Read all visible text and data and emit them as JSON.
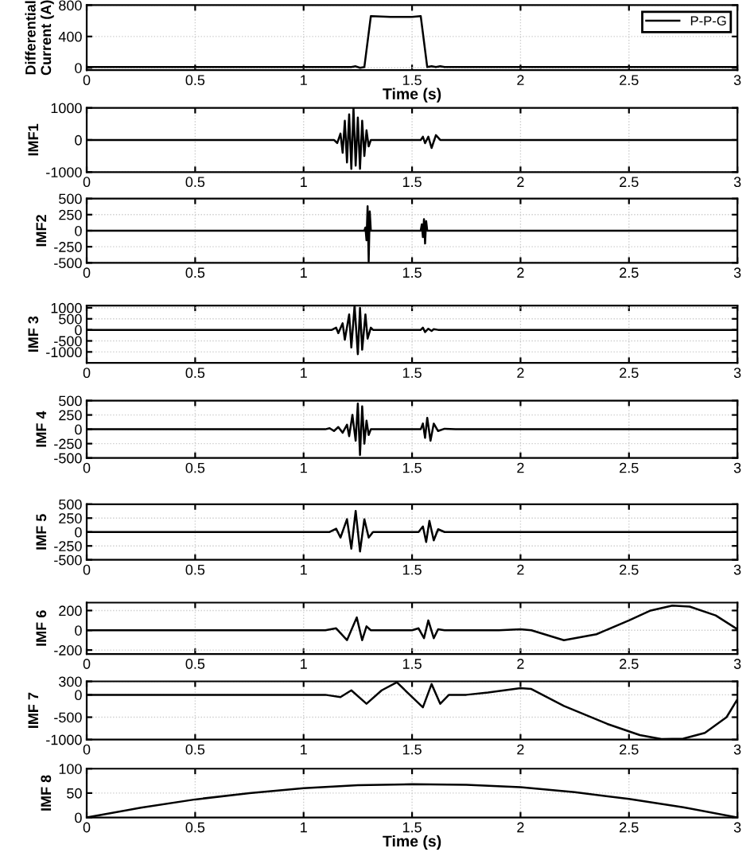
{
  "chart_data": [
    {
      "type": "line",
      "ylabel": "Differential\nCurrent (A)",
      "xlabel": "Time (s)",
      "legend": "top right",
      "grid": true,
      "xlim": [
        0,
        3
      ],
      "ylim": [
        -30,
        800
      ],
      "xticks": [
        0,
        0.5,
        1,
        1.5,
        2,
        2.5,
        3
      ],
      "yticks": [
        0,
        400,
        800
      ],
      "x": [
        0,
        1.22,
        1.24,
        1.26,
        1.28,
        1.31,
        1.4,
        1.5,
        1.54,
        1.57,
        1.59,
        1.61,
        1.63,
        1.65,
        3
      ],
      "series": [
        {
          "name": "P-P-G",
          "color": "#000000",
          "values": [
            10,
            10,
            20,
            0,
            10,
            660,
            650,
            650,
            660,
            10,
            20,
            10,
            20,
            10,
            10
          ]
        }
      ]
    },
    {
      "type": "line",
      "ylabel": "IMF1",
      "grid": true,
      "xlim": [
        0,
        3
      ],
      "ylim": [
        -1000,
        1000
      ],
      "xticks": [
        0,
        0.5,
        1,
        1.5,
        2,
        2.5,
        3
      ],
      "yticks": [
        -1000,
        0,
        1000
      ],
      "x": [
        0,
        1.14,
        1.155,
        1.17,
        1.18,
        1.19,
        1.2,
        1.21,
        1.22,
        1.23,
        1.24,
        1.25,
        1.26,
        1.27,
        1.28,
        1.29,
        1.3,
        1.31,
        1.54,
        1.55,
        1.56,
        1.575,
        1.59,
        1.61,
        1.63,
        3
      ],
      "series": [
        {
          "color": "#000000",
          "values": [
            0,
            0,
            -100,
            200,
            -400,
            600,
            -700,
            800,
            -900,
            1000,
            -800,
            700,
            -900,
            600,
            -500,
            300,
            -200,
            0,
            0,
            100,
            -100,
            100,
            -250,
            150,
            0,
            0
          ]
        }
      ]
    },
    {
      "type": "line",
      "ylabel": "IMF2",
      "grid": true,
      "xlim": [
        0,
        3
      ],
      "ylim": [
        -500,
        500
      ],
      "xticks": [
        0,
        0.5,
        1,
        1.5,
        2,
        2.5,
        3
      ],
      "yticks": [
        -500,
        -250,
        0,
        250,
        500
      ],
      "x": [
        0,
        1.28,
        1.285,
        1.29,
        1.295,
        1.3,
        1.305,
        1.31,
        1.54,
        1.545,
        1.55,
        1.555,
        1.56,
        1.565,
        1.57,
        3
      ],
      "series": [
        {
          "color": "#000000",
          "values": [
            0,
            0,
            50,
            -150,
            380,
            -480,
            300,
            0,
            0,
            100,
            -100,
            180,
            -200,
            150,
            0,
            0
          ]
        }
      ]
    },
    {
      "type": "line",
      "ylabel": "IMF 3",
      "grid": true,
      "xlim": [
        0,
        3
      ],
      "ylim": [
        -1500,
        1100
      ],
      "xticks": [
        0,
        0.5,
        1,
        1.5,
        2,
        2.5,
        3
      ],
      "yticks": [
        -1000,
        -500,
        0,
        500,
        1000
      ],
      "x": [
        0,
        1.13,
        1.15,
        1.16,
        1.18,
        1.19,
        1.21,
        1.22,
        1.235,
        1.25,
        1.26,
        1.27,
        1.285,
        1.295,
        1.31,
        1.32,
        1.54,
        1.55,
        1.56,
        1.575,
        1.59,
        1.6,
        1.62,
        3
      ],
      "series": [
        {
          "color": "#000000",
          "values": [
            0,
            0,
            100,
            -150,
            300,
            -450,
            700,
            -800,
            1100,
            -1100,
            1000,
            -900,
            700,
            -400,
            100,
            0,
            0,
            100,
            -100,
            50,
            -50,
            30,
            0,
            0
          ]
        }
      ]
    },
    {
      "type": "line",
      "ylabel": "IMF 4",
      "grid": true,
      "xlim": [
        0,
        3
      ],
      "ylim": [
        -500,
        500
      ],
      "xticks": [
        0,
        0.5,
        1,
        1.5,
        2,
        2.5,
        3
      ],
      "yticks": [
        -500,
        -250,
        0,
        250,
        500
      ],
      "x": [
        0,
        1.1,
        1.12,
        1.14,
        1.16,
        1.18,
        1.2,
        1.21,
        1.225,
        1.24,
        1.25,
        1.26,
        1.27,
        1.28,
        1.29,
        1.3,
        1.31,
        1.54,
        1.55,
        1.56,
        1.57,
        1.585,
        1.6,
        1.62,
        1.65,
        1.7,
        3
      ],
      "series": [
        {
          "color": "#000000",
          "values": [
            0,
            0,
            20,
            -30,
            40,
            -60,
            80,
            -120,
            250,
            -200,
            450,
            -450,
            400,
            -250,
            150,
            -100,
            0,
            0,
            100,
            -150,
            200,
            -200,
            100,
            -30,
            10,
            0,
            0
          ]
        }
      ]
    },
    {
      "type": "line",
      "ylabel": "IMF 5",
      "grid": true,
      "xlim": [
        0,
        3
      ],
      "ylim": [
        -500,
        500
      ],
      "xticks": [
        0,
        0.5,
        1,
        1.5,
        2,
        2.5,
        3
      ],
      "yticks": [
        -500,
        -250,
        0,
        250,
        500
      ],
      "x": [
        0,
        1.12,
        1.15,
        1.17,
        1.2,
        1.22,
        1.24,
        1.26,
        1.28,
        1.3,
        1.32,
        1.53,
        1.55,
        1.565,
        1.58,
        1.6,
        1.62,
        1.65,
        3
      ],
      "series": [
        {
          "color": "#000000",
          "values": [
            0,
            0,
            60,
            -100,
            230,
            -300,
            380,
            -350,
            230,
            -100,
            0,
            0,
            100,
            -180,
            200,
            -150,
            50,
            0,
            0
          ]
        }
      ]
    },
    {
      "type": "line",
      "ylabel": "IMF 6",
      "grid": true,
      "xlim": [
        0,
        3
      ],
      "ylim": [
        -240,
        280
      ],
      "xticks": [
        0,
        0.5,
        1,
        1.5,
        2,
        2.5,
        3
      ],
      "yticks": [
        -200,
        0,
        200
      ],
      "x": [
        0,
        1.1,
        1.15,
        1.2,
        1.245,
        1.27,
        1.29,
        1.31,
        1.5,
        1.53,
        1.555,
        1.575,
        1.6,
        1.62,
        1.65,
        1.9,
        2.0,
        2.05,
        2.2,
        2.35,
        2.5,
        2.6,
        2.7,
        2.78,
        2.9,
        3.0
      ],
      "series": [
        {
          "color": "#000000",
          "values": [
            0,
            0,
            20,
            -100,
            130,
            -100,
            40,
            0,
            0,
            20,
            -80,
            100,
            -80,
            10,
            0,
            0,
            10,
            0,
            -100,
            -40,
            100,
            200,
            250,
            240,
            150,
            10
          ]
        }
      ]
    },
    {
      "type": "line",
      "ylabel": "IMF 7",
      "grid": true,
      "xlim": [
        0,
        3
      ],
      "ylim": [
        -1000,
        300
      ],
      "xticks": [
        0,
        0.5,
        1,
        1.5,
        2,
        2.5,
        3
      ],
      "yticks": [
        -1000,
        -500,
        0,
        300
      ],
      "x": [
        0,
        1.1,
        1.17,
        1.22,
        1.29,
        1.36,
        1.43,
        1.5,
        1.55,
        1.59,
        1.63,
        1.67,
        1.75,
        1.85,
        2.0,
        2.05,
        2.2,
        2.4,
        2.55,
        2.65,
        2.75,
        2.85,
        2.95,
        3.0
      ],
      "series": [
        {
          "color": "#000000",
          "values": [
            0,
            0,
            -50,
            100,
            -200,
            100,
            280,
            -50,
            -280,
            240,
            -200,
            0,
            0,
            50,
            150,
            130,
            -250,
            -650,
            -900,
            -990,
            -980,
            -850,
            -500,
            -100
          ]
        }
      ]
    },
    {
      "type": "line",
      "ylabel": "IMF 8",
      "xlabel": "Time (s)",
      "grid": true,
      "xlim": [
        0,
        3
      ],
      "ylim": [
        0,
        100
      ],
      "xticks": [
        0,
        0.5,
        1,
        1.5,
        2,
        2.5,
        3
      ],
      "yticks": [
        0,
        50,
        100
      ],
      "x": [
        0,
        0.25,
        0.5,
        0.75,
        1,
        1.25,
        1.5,
        1.75,
        2,
        2.25,
        2.5,
        2.75,
        3
      ],
      "series": [
        {
          "color": "#000000",
          "values": [
            0,
            20,
            37,
            50,
            60,
            66,
            68,
            67,
            62,
            52,
            38,
            21,
            0
          ]
        }
      ]
    }
  ]
}
